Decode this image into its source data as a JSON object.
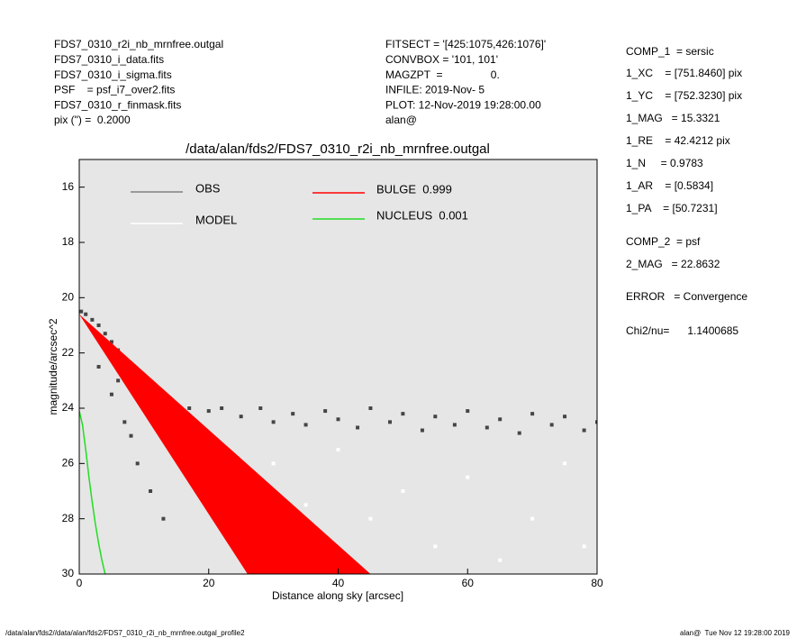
{
  "header_left": [
    "FDS7_0310_r2i_nb_mrnfree.outgal",
    "FDS7_0310_i_data.fits",
    "FDS7_0310_i_sigma.fits",
    "PSF    = psf_i7_over2.fits",
    "FDS7_0310_r_finmask.fits",
    "pix (\") =  0.2000"
  ],
  "header_mid": [
    "FITSECT = '[425:1075,426:1076]'",
    "CONVBOX = '101, 101'",
    "MAGZPT  =                0.",
    "INFILE: 2019-Nov- 5",
    "PLOT: 12-Nov-2019 19:28:00.00",
    "alan@"
  ],
  "params": [
    "COMP_1  = sersic",
    "1_XC    = [751.8460] pix",
    "1_YC    = [752.3230] pix",
    "1_MAG   = 15.3321",
    "1_RE    = 42.4212 pix",
    "1_N     = 0.9783",
    "1_AR    = [0.5834]",
    "1_PA    = [50.7231]",
    "COMP_2  = psf",
    "2_MAG   = 22.8632",
    "ERROR   = Convergence",
    "Chi2/nu=      1.1400685"
  ],
  "footer_left": "/data/alan/fds2//data/alan/fds2/FDS7_0310_r2i_nb_mrnfree.outgal_profile2",
  "footer_right": "alan@  Tue Nov 12 19:28:00 2019",
  "chart_data": {
    "type": "scatter",
    "title": "/data/alan/fds2/FDS7_0310_r2i_nb_mrnfree.outgal",
    "x_label": "Distance along sky [arcsec]",
    "y_label": "magnitude/arcsec^2",
    "xlim": [
      0,
      80
    ],
    "ylim": [
      30,
      15
    ],
    "xticks": [
      0,
      20,
      40,
      60,
      80
    ],
    "yticks": [
      16,
      18,
      20,
      22,
      24,
      26,
      28,
      30
    ],
    "background": "#e6e6e6",
    "series": [
      {
        "name": "OBS",
        "color": "#808080",
        "marker_color": "#454545",
        "kind": "points",
        "x": [
          0.3,
          1,
          2,
          3,
          4,
          5,
          6,
          7,
          8,
          9,
          10,
          11,
          12,
          13,
          14,
          15,
          17,
          20,
          22,
          25,
          28,
          30,
          33,
          35,
          38,
          40,
          43,
          45,
          48,
          50,
          53,
          55,
          58,
          60,
          63,
          65,
          68,
          70,
          73,
          75,
          78,
          80,
          5,
          7,
          9,
          11,
          13,
          3,
          6,
          8
        ],
        "values": [
          20.5,
          20.6,
          20.8,
          21.0,
          21.3,
          21.6,
          21.9,
          22.2,
          22.5,
          22.8,
          23.0,
          23.3,
          23.5,
          23.7,
          23.8,
          23.9,
          24.0,
          24.1,
          24.0,
          24.3,
          24.0,
          24.5,
          24.2,
          24.6,
          24.1,
          24.4,
          24.7,
          24.0,
          24.5,
          24.2,
          24.8,
          24.3,
          24.6,
          24.1,
          24.7,
          24.4,
          24.9,
          24.2,
          24.6,
          24.3,
          24.8,
          24.5,
          23.5,
          24.5,
          26,
          27,
          28,
          22.5,
          23.0,
          25.0
        ]
      },
      {
        "name": "MODEL",
        "color": "#ffffff",
        "marker_color": "#ffffff",
        "kind": "points",
        "x": [
          20,
          30,
          40,
          50,
          60,
          70,
          55,
          65,
          45,
          35,
          75,
          78
        ],
        "values": [
          25.5,
          26,
          25.5,
          27,
          26.5,
          28,
          29,
          29.5,
          28,
          27.5,
          26,
          29
        ]
      },
      {
        "name": "BULGE  0.999",
        "color": "#ff0000",
        "kind": "polygon",
        "x": [
          0,
          26,
          45
        ],
        "values": [
          20.6,
          30,
          30
        ]
      },
      {
        "name": "NUCLEUS  0.001",
        "color": "#22dd22",
        "kind": "line",
        "x": [
          0,
          0.5,
          1,
          1.5,
          2,
          2.5,
          3,
          3.5,
          4
        ],
        "values": [
          24.1,
          24.6,
          25.5,
          26.5,
          27.4,
          28.2,
          28.9,
          29.5,
          30
        ]
      }
    ]
  }
}
